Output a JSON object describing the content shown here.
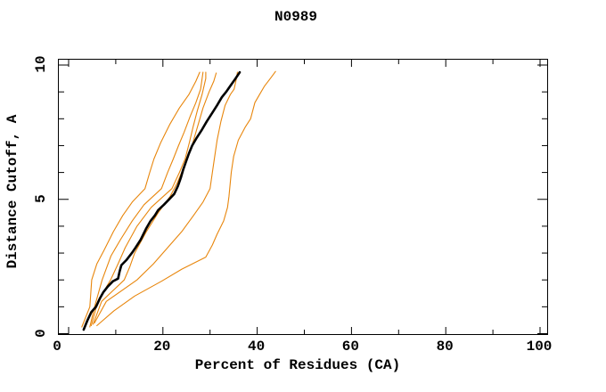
{
  "title": "N0989",
  "chart_data": {
    "type": "line",
    "title": "N0989",
    "xlabel": "Percent of Residues (CA)",
    "ylabel": "Distance Cutoff, A",
    "xlim": [
      0,
      100
    ],
    "ylim": [
      0,
      10
    ],
    "grid": false,
    "legend": "none",
    "frame": "full box with inward tick marks on all four sides",
    "x_major_ticks": [
      0,
      20,
      40,
      60,
      80,
      100
    ],
    "x_minor_ticks": [
      10,
      30,
      50,
      70,
      90
    ],
    "x_tick_labels": [
      "0",
      "20",
      "40",
      "60",
      "80",
      "100"
    ],
    "y_major_ticks": [
      0,
      5,
      10
    ],
    "y_minor_ticks": [
      1,
      2,
      3,
      4,
      6,
      7,
      8,
      9
    ],
    "y_tick_labels": [
      "0",
      "5",
      "10"
    ],
    "colors": {
      "orange_curves": "#E8860C",
      "black_curve": "#000000",
      "frame": "#000000",
      "background": "#FFFFFF"
    },
    "series": [
      {
        "name": "black-thick-curve",
        "color": "#000000",
        "width": 2.6,
        "points": [
          [
            3.2,
            0.15
          ],
          [
            4.0,
            0.5
          ],
          [
            4.8,
            0.8
          ],
          [
            5.8,
            1.0
          ],
          [
            6.6,
            1.3
          ],
          [
            7.4,
            1.55
          ],
          [
            8.3,
            1.75
          ],
          [
            9.4,
            1.95
          ],
          [
            10.5,
            2.05
          ],
          [
            10.8,
            2.3
          ],
          [
            11.2,
            2.55
          ],
          [
            12.3,
            2.75
          ],
          [
            13.4,
            3.0
          ],
          [
            14.2,
            3.2
          ],
          [
            15.3,
            3.5
          ],
          [
            16.4,
            3.9
          ],
          [
            17.4,
            4.2
          ],
          [
            18.3,
            4.4
          ],
          [
            19.0,
            4.6
          ],
          [
            20.2,
            4.8
          ],
          [
            21.3,
            5.0
          ],
          [
            22.4,
            5.2
          ],
          [
            23.2,
            5.5
          ],
          [
            23.8,
            5.8
          ],
          [
            24.3,
            6.1
          ],
          [
            24.9,
            6.4
          ],
          [
            25.5,
            6.7
          ],
          [
            26.2,
            7.0
          ],
          [
            27.2,
            7.3
          ],
          [
            28.3,
            7.6
          ],
          [
            29.3,
            7.9
          ],
          [
            30.4,
            8.2
          ],
          [
            31.5,
            8.5
          ],
          [
            32.5,
            8.8
          ],
          [
            33.4,
            9.0
          ],
          [
            34.4,
            9.25
          ],
          [
            35.4,
            9.5
          ],
          [
            36.3,
            9.73
          ]
        ]
      },
      {
        "name": "orange-curve-1",
        "color": "#E8860C",
        "width": 1.1,
        "points": [
          [
            2.8,
            0.25
          ],
          [
            4.5,
            1.0
          ],
          [
            4.9,
            2.0
          ],
          [
            6.0,
            2.6
          ],
          [
            7.5,
            3.1
          ],
          [
            9.5,
            3.8
          ],
          [
            11.5,
            4.4
          ],
          [
            13.5,
            4.9
          ],
          [
            16.2,
            5.4
          ],
          [
            17.2,
            6.0
          ],
          [
            18.1,
            6.5
          ],
          [
            19.5,
            7.1
          ],
          [
            21.5,
            7.8
          ],
          [
            23.5,
            8.4
          ],
          [
            25.5,
            8.9
          ],
          [
            27.0,
            9.4
          ],
          [
            27.8,
            9.73
          ]
        ]
      },
      {
        "name": "orange-curve-2",
        "color": "#E8860C",
        "width": 1.1,
        "points": [
          [
            4.5,
            0.25
          ],
          [
            5.5,
            1.0
          ],
          [
            7.1,
            2.0
          ],
          [
            9.0,
            2.9
          ],
          [
            11.0,
            3.5
          ],
          [
            13.5,
            4.2
          ],
          [
            16.0,
            4.8
          ],
          [
            19.7,
            5.4
          ],
          [
            21.0,
            6.0
          ],
          [
            22.2,
            6.5
          ],
          [
            23.3,
            7.0
          ],
          [
            24.5,
            7.5
          ],
          [
            25.8,
            8.1
          ],
          [
            27.0,
            8.6
          ],
          [
            28.0,
            9.1
          ],
          [
            28.5,
            9.73
          ]
        ]
      },
      {
        "name": "orange-curve-3",
        "color": "#E8860C",
        "width": 1.1,
        "points": [
          [
            4.8,
            0.3
          ],
          [
            6.2,
            1.2
          ],
          [
            8.9,
            2.0
          ],
          [
            10.5,
            2.6
          ],
          [
            12.0,
            3.2
          ],
          [
            14.5,
            4.0
          ],
          [
            17.5,
            4.7
          ],
          [
            21.9,
            5.4
          ],
          [
            23.5,
            6.0
          ],
          [
            24.7,
            6.5
          ],
          [
            25.6,
            7.1
          ],
          [
            26.4,
            7.7
          ],
          [
            27.3,
            8.3
          ],
          [
            28.3,
            8.9
          ],
          [
            29.1,
            9.5
          ],
          [
            29.1,
            9.73
          ]
        ]
      },
      {
        "name": "orange-curve-4",
        "color": "#E8860C",
        "width": 1.1,
        "points": [
          [
            5.2,
            0.35
          ],
          [
            7.0,
            1.2
          ],
          [
            11.8,
            2.0
          ],
          [
            13.0,
            2.5
          ],
          [
            14.0,
            3.0
          ],
          [
            16.5,
            3.8
          ],
          [
            19.0,
            4.5
          ],
          [
            21.5,
            5.1
          ],
          [
            23.0,
            5.6
          ],
          [
            24.2,
            6.1
          ],
          [
            25.4,
            6.6
          ],
          [
            26.5,
            7.2
          ],
          [
            27.5,
            7.8
          ],
          [
            28.5,
            8.4
          ],
          [
            29.8,
            9.0
          ],
          [
            30.8,
            9.4
          ],
          [
            31.3,
            9.7
          ]
        ]
      },
      {
        "name": "orange-curve-5",
        "color": "#E8860C",
        "width": 1.1,
        "points": [
          [
            5.5,
            0.4
          ],
          [
            8.0,
            1.2
          ],
          [
            14.5,
            2.0
          ],
          [
            18.0,
            2.6
          ],
          [
            21.0,
            3.2
          ],
          [
            24.0,
            3.8
          ],
          [
            26.5,
            4.4
          ],
          [
            28.5,
            4.9
          ],
          [
            30.0,
            5.4
          ],
          [
            30.5,
            6.0
          ],
          [
            30.9,
            6.5
          ],
          [
            31.5,
            7.2
          ],
          [
            32.3,
            7.9
          ],
          [
            33.2,
            8.5
          ],
          [
            34.3,
            8.9
          ],
          [
            35.1,
            9.1
          ],
          [
            35.6,
            9.5
          ],
          [
            35.8,
            9.73
          ]
        ]
      },
      {
        "name": "orange-curve-6",
        "color": "#E8860C",
        "width": 1.1,
        "points": [
          [
            6.0,
            0.3
          ],
          [
            9.6,
            0.85
          ],
          [
            14.0,
            1.4
          ],
          [
            19.7,
            1.95
          ],
          [
            24.0,
            2.4
          ],
          [
            29.1,
            2.85
          ],
          [
            30.5,
            3.3
          ],
          [
            31.5,
            3.7
          ],
          [
            32.9,
            4.2
          ],
          [
            33.7,
            4.7
          ],
          [
            34.0,
            5.1
          ],
          [
            34.5,
            6.0
          ],
          [
            35.0,
            6.6
          ],
          [
            36.0,
            7.2
          ],
          [
            37.5,
            7.7
          ],
          [
            38.6,
            8.0
          ],
          [
            39.5,
            8.6
          ],
          [
            40.5,
            8.9
          ],
          [
            41.5,
            9.2
          ],
          [
            43.0,
            9.55
          ],
          [
            43.9,
            9.76
          ]
        ]
      }
    ]
  }
}
